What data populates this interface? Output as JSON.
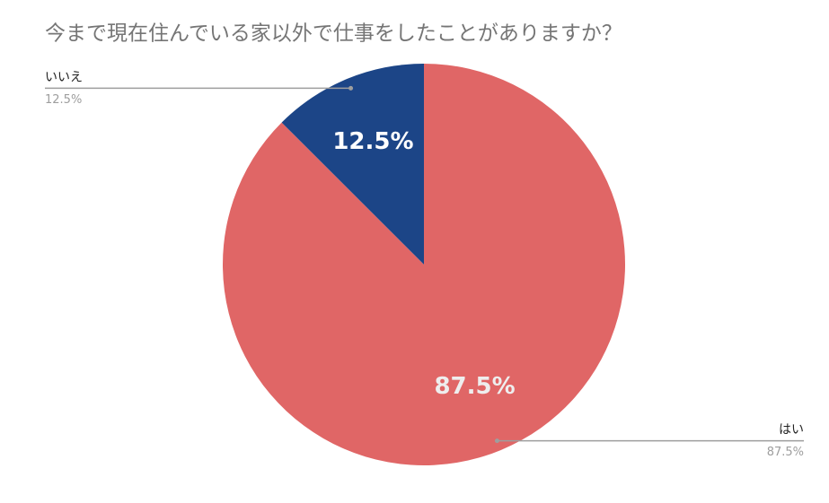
{
  "chart_data": {
    "type": "pie",
    "title": "今まで現在住んでいる家以外で仕事をしたことがありますか？",
    "categories": [
      "はい",
      "いいえ"
    ],
    "values": [
      87.5,
      12.5
    ],
    "value_labels": [
      "87.5%",
      "12.5%"
    ],
    "colors": [
      "#e06666",
      "#1c4587"
    ]
  }
}
